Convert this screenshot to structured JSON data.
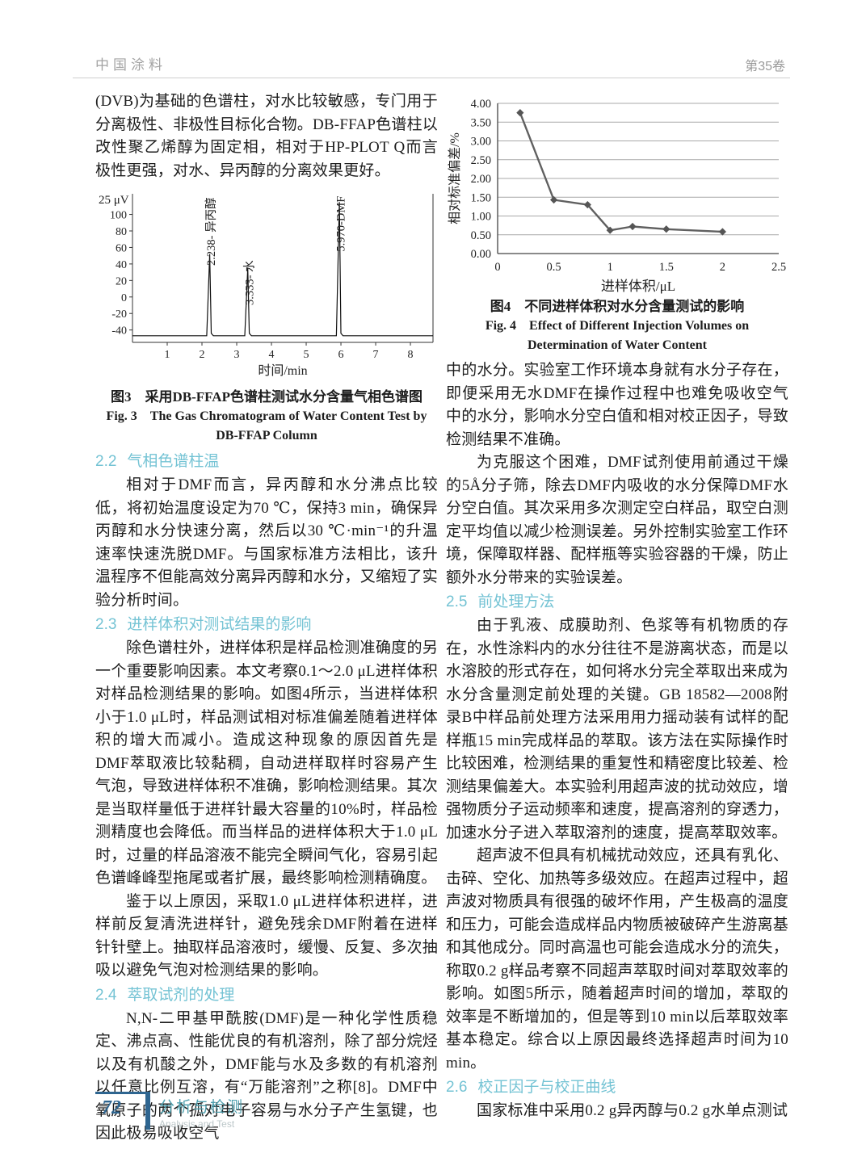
{
  "header": {
    "journal": "中国涂料",
    "volume": "第35卷"
  },
  "footer": {
    "page_number": "72",
    "section_cn": "分析与检测",
    "section_en": "Analysis and Test"
  },
  "captions": {
    "fig3_cn": "图3　采用DB-FFAP色谱柱测试水分含量气相色谱图",
    "fig3_en1": "Fig. 3　The Gas Chromatogram of Water Content Test by",
    "fig3_en2": "DB-FFAP Column",
    "fig4_cn": "图4　不同进样体积对水分含量测试的影响",
    "fig4_en1": "Fig. 4　Effect of Different Injection Volumes on",
    "fig4_en2": "Determination of Water Content"
  },
  "sections": {
    "s22": {
      "num": "2.2",
      "title": "气相色谱柱温"
    },
    "s23": {
      "num": "2.3",
      "title": "进样体积对测试结果的影响"
    },
    "s24": {
      "num": "2.4",
      "title": "萃取试剂的处理"
    },
    "s25": {
      "num": "2.5",
      "title": "前处理方法"
    },
    "s26": {
      "num": "2.6",
      "title": "校正因子与校正曲线"
    }
  },
  "left": {
    "p_intro": "(DVB)为基础的色谱柱，对水比较敏感，专门用于分离极性、非极性目标化合物。DB-FFAP色谱柱以改性聚乙烯醇为固定相，相对于HP-PLOT Q而言极性更强，对水、异丙醇的分离效果更好。",
    "p22": "相对于DMF而言，异丙醇和水分沸点比较低，将初始温度设定为70 ℃，保持3 min，确保异丙醇和水分快速分离，然后以30 ℃·min⁻¹的升温速率快速洗脱DMF。与国家标准方法相比，该升温程序不但能高效分离异丙醇和水分，又缩短了实验分析时间。",
    "p23a": "除色谱柱外，进样体积是样品检测准确度的另一个重要影响因素。本文考察0.1～2.0 μL进样体积对样品检测结果的影响。如图4所示，当进样体积小于1.0 μL时，样品测试相对标准偏差随着进样体积的增大而减小。造成这种现象的原因首先是DMF萃取液比较黏稠，自动进样取样时容易产生气泡，导致进样体积不准确，影响检测结果。其次是当取样量低于进样针最大容量的10%时，样品检测精度也会降低。而当样品的进样体积大于1.0 μL时，过量的样品溶液不能完全瞬间气化，容易引起色谱峰峰型拖尾或者扩展，最终影响检测精确度。",
    "p23b": "鉴于以上原因，采取1.0 μL进样体积进样，进样前反复清洗进样针，避免残余DMF附着在进样针针壁上。抽取样品溶液时，缓慢、反复、多次抽吸以避免气泡对检测结果的影响。",
    "p24": "N,N-二甲基甲酰胺(DMF)是一种化学性质稳定、沸点高、性能优良的有机溶剂，除了部分烷烃以及有机酸之外，DMF能与水及多数的有机溶剂以任意比例互溶，有“万能溶剂”之称[8]。DMF中氧原子的两个孤对电子容易与水分子产生氢键，也因此极易吸收空气"
  },
  "right": {
    "p_cont": "中的水分。实验室工作环境本身就有水分子存在，即便采用无水DMF在操作过程中也难免吸收空气中的水分，影响水分空白值和相对校正因子，导致检测结果不准确。",
    "p_overcome": "为克服这个困难，DMF试剂使用前通过干燥的5Å分子筛，除去DMF内吸收的水分保障DMF水分空白值。其次采用多次测定空白样品，取空白测定平均值以减少检测误差。另外控制实验室工作环境，保障取样器、配样瓶等实验容器的干燥，防止额外水分带来的实验误差。",
    "p25a": "由于乳液、成膜助剂、色浆等有机物质的存在，水性涂料内的水分往往不是游离状态，而是以水溶胶的形式存在，如何将水分完全萃取出来成为水分含量测定前处理的关键。GB 18582—2008附录B中样品前处理方法采用用力摇动装有试样的配样瓶15 min完成样品的萃取。该方法在实际操作时比较困难，检测结果的重复性和精密度比较差、检测结果偏差大。本实验利用超声波的扰动效应，增强物质分子运动频率和速度，提高溶剂的穿透力，加速水分子进入萃取溶剂的速度，提高萃取效率。",
    "p25b": "超声波不但具有机械扰动效应，还具有乳化、击碎、空化、加热等多级效应。在超声过程中，超声波对物质具有很强的破坏作用，产生极高的温度和压力，可能会造成样品内物质被破碎产生游离基和其他成分。同时高温也可能会造成水分的流失，称取0.2 g样品考察不同超声萃取时间对萃取效率的影响。如图5所示，随着超声时间的增加，萃取的效率是不断增加的，但是等到10 min以后萃取效率基本稳定。综合以上原因最终选择超声时间为10 min。",
    "p26": "国家标准中采用0.2 g异丙醇与0.2 g水单点测试"
  },
  "chart_data": [
    {
      "id": "fig3",
      "type": "line",
      "title": "采用DB-FFAP色谱柱测试水分含量气相色谱图",
      "unit_label": "25 μV",
      "xlabel": "时间/min",
      "xlim": [
        0,
        8.65
      ],
      "ylim": [
        -55,
        125
      ],
      "x_ticks": [
        1,
        2,
        3,
        4,
        5,
        6,
        7,
        8
      ],
      "y_ticks": [
        100,
        80,
        60,
        40,
        20,
        0,
        -20,
        -40
      ],
      "baseline": -47,
      "grid": "off",
      "peaks": [
        {
          "time": 2.238,
          "apex": 52,
          "label": "2.238- 异丙醇",
          "label_base": 38
        },
        {
          "time": 3.333,
          "apex": 35,
          "label": "3.333- 水",
          "label_base": -10
        },
        {
          "time": 5.97,
          "apex": 115,
          "label": "5.970-DMF",
          "label_base": 55
        }
      ]
    },
    {
      "id": "fig4",
      "type": "line",
      "title": "不同进样体积对水分含量测试的影响",
      "xlabel": "进样体积/μL",
      "ylabel": "相对标准偏差/%",
      "x": [
        0.2,
        0.5,
        0.8,
        1.0,
        1.2,
        1.5,
        2.0
      ],
      "y": [
        3.75,
        1.43,
        1.3,
        0.62,
        0.72,
        0.65,
        0.58
      ],
      "xlim": [
        0,
        2.5
      ],
      "ylim": [
        0,
        4
      ],
      "x_ticks": [
        0,
        0.5,
        1,
        1.5,
        2,
        2.5
      ],
      "x_tick_labels": [
        "0",
        "0.5",
        "1",
        "1.5",
        "2",
        "2.5"
      ],
      "y_ticks": [
        0,
        0.5,
        1,
        1.5,
        2,
        2.5,
        3,
        3.5,
        4
      ],
      "grid": "horizontal",
      "marker": "diamond",
      "line_color": "#606060"
    }
  ]
}
